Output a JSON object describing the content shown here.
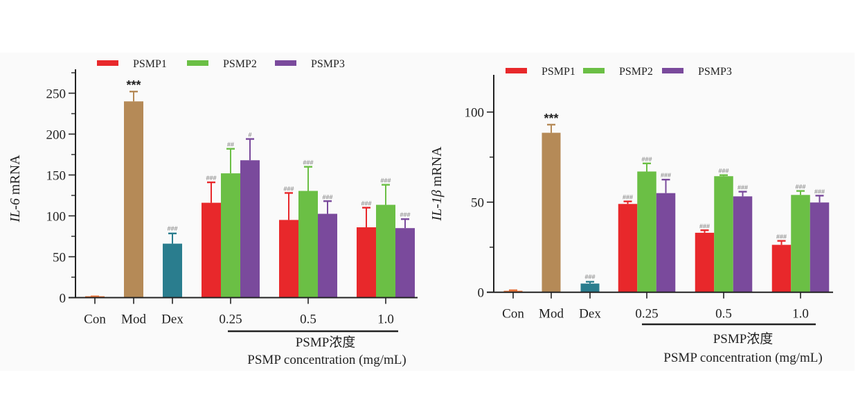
{
  "colors": {
    "PSMP1": "#e8282b",
    "PSMP2": "#6bbf45",
    "PSMP3": "#7a4a9c",
    "Con": "#e8743b",
    "Mod": "#b58a57",
    "Dex": "#2a7d8e",
    "axis": "#222222"
  },
  "chart_data": [
    {
      "type": "bar",
      "title": "",
      "ylabel_italic": "IL-6",
      "ylabel_rest": " mRNA",
      "ylim": [
        0,
        275
      ],
      "yticks": [
        0,
        50,
        100,
        150,
        200,
        250
      ],
      "yminor": [
        25,
        75,
        125,
        175,
        225,
        275
      ],
      "legend": {
        "position": "top",
        "entries": [
          "PSMP1",
          "PSMP2",
          "PSMP3"
        ]
      },
      "single_categories": [
        {
          "label": "Con",
          "value": 1,
          "error": 0.5,
          "sig": ""
        },
        {
          "label": "Mod",
          "value": 240,
          "error": 12,
          "sig": "***"
        },
        {
          "label": "Dex",
          "value": 66,
          "error": 12.5,
          "sig": "###"
        }
      ],
      "groups": [
        "0.25",
        "0.5",
        "1.0"
      ],
      "series": [
        {
          "name": "PSMP1",
          "values": [
            116,
            95,
            86
          ],
          "errors": [
            25,
            33,
            24
          ],
          "sig": [
            "###",
            "###",
            "###"
          ]
        },
        {
          "name": "PSMP2",
          "values": [
            152,
            130.5,
            113.5
          ],
          "errors": [
            30,
            29.5,
            24.5
          ],
          "sig": [
            "##",
            "###",
            "###"
          ]
        },
        {
          "name": "PSMP3",
          "values": [
            168,
            102.5,
            85
          ],
          "errors": [
            26,
            15.5,
            11
          ],
          "sig": [
            "#",
            "###",
            "###"
          ]
        }
      ],
      "group_title_cn": "PSMP浓度",
      "xlabel": "PSMP concentration (mg/mL)"
    },
    {
      "type": "bar",
      "title": "",
      "ylabel_italic": "IL-1β",
      "ylabel_rest": " mRNA",
      "ylim": [
        0,
        120
      ],
      "yticks": [
        0,
        50,
        100
      ],
      "yminor": [
        25,
        75
      ],
      "legend": {
        "position": "top",
        "entries": [
          "PSMP1",
          "PSMP2",
          "PSMP3"
        ]
      },
      "single_categories": [
        {
          "label": "Con",
          "value": 0.8,
          "error": 0.3,
          "sig": ""
        },
        {
          "label": "Mod",
          "value": 88.5,
          "error": 4.5,
          "sig": "***"
        },
        {
          "label": "Dex",
          "value": 4.8,
          "error": 1,
          "sig": "###"
        }
      ],
      "groups": [
        "0.25",
        "0.5",
        "1.0"
      ],
      "series": [
        {
          "name": "PSMP1",
          "values": [
            49,
            33,
            26.3
          ],
          "errors": [
            1.4,
            1.4,
            2.2
          ],
          "sig": [
            "###",
            "###",
            "###"
          ]
        },
        {
          "name": "PSMP2",
          "values": [
            67,
            64.4,
            54
          ],
          "errors": [
            4.5,
            0.6,
            2.2
          ],
          "sig": [
            "###",
            "###",
            "###"
          ]
        },
        {
          "name": "PSMP3",
          "values": [
            55,
            53.2,
            49.8
          ],
          "errors": [
            7.5,
            2.6,
            3.8
          ],
          "sig": [
            "###",
            "###",
            "###"
          ]
        }
      ],
      "group_title_cn": "PSMP浓度",
      "xlabel": "PSMP concentration (mg/mL)"
    }
  ]
}
